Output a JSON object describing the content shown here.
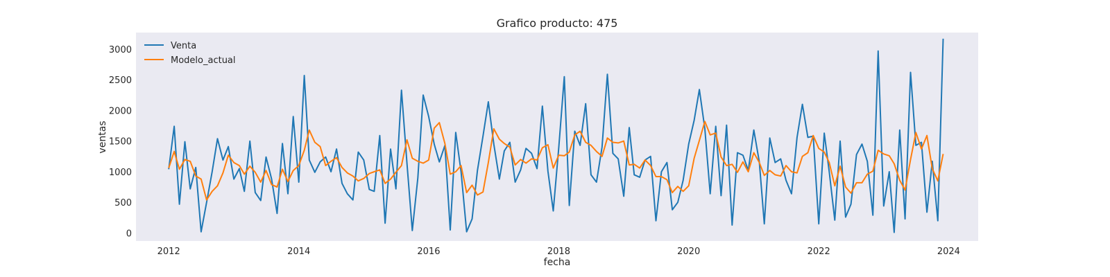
{
  "chart_data": {
    "type": "line",
    "title": "Grafico producto: 475",
    "xlabel": "fecha",
    "ylabel": "ventas",
    "x_range": [
      "2011-07-01",
      "2024-06-15"
    ],
    "ylim": [
      -130,
      3270
    ],
    "x_ticks": [
      "2012",
      "2014",
      "2016",
      "2018",
      "2020",
      "2022",
      "2024"
    ],
    "y_ticks": [
      0,
      500,
      1000,
      1500,
      2000,
      2500,
      3000
    ],
    "grid": false,
    "legend": "top-left",
    "start_date": "2012-01",
    "frequency": "monthly",
    "series": [
      {
        "name": "Venta",
        "color": "#1f77b4",
        "values": [
          1040,
          1740,
          470,
          1490,
          720,
          1070,
          20,
          500,
          1000,
          1540,
          1190,
          1410,
          880,
          1050,
          680,
          1500,
          660,
          530,
          1240,
          880,
          320,
          1460,
          640,
          1900,
          830,
          2570,
          1190,
          990,
          1160,
          1240,
          1000,
          1370,
          810,
          640,
          540,
          1320,
          1190,
          710,
          680,
          1590,
          160,
          1370,
          720,
          2330,
          1140,
          40,
          900,
          2250,
          1900,
          1450,
          1160,
          1430,
          50,
          1640,
          1000,
          20,
          230,
          1020,
          1580,
          2140,
          1450,
          880,
          1340,
          1480,
          830,
          1030,
          1380,
          1300,
          1050,
          2070,
          1010,
          360,
          1390,
          2550,
          450,
          1660,
          1430,
          2110,
          950,
          830,
          1400,
          2590,
          1300,
          1210,
          600,
          1720,
          950,
          910,
          1190,
          1250,
          200,
          1000,
          1150,
          380,
          500,
          860,
          1450,
          1840,
          2340,
          1700,
          640,
          1740,
          610,
          1760,
          130,
          1310,
          1270,
          1020,
          1680,
          1160,
          150,
          1550,
          1150,
          1210,
          860,
          640,
          1560,
          2100,
          1560,
          1580,
          150,
          1630,
          1000,
          210,
          1500,
          260,
          470,
          1280,
          1450,
          1170,
          290,
          2970,
          440,
          1000,
          10,
          1680,
          230,
          2620,
          1430,
          1480,
          340,
          1170,
          200,
          3170
        ]
      },
      {
        "name": "Modelo_actual",
        "color": "#ff7f0e",
        "values": [
          1060,
          1330,
          1040,
          1200,
          1170,
          930,
          880,
          540,
          680,
          770,
          980,
          1270,
          1150,
          1100,
          960,
          1090,
          990,
          830,
          1020,
          790,
          750,
          1040,
          840,
          1020,
          1100,
          1350,
          1680,
          1480,
          1410,
          1100,
          1170,
          1230,
          1070,
          980,
          930,
          850,
          890,
          970,
          1000,
          1030,
          810,
          880,
          990,
          1100,
          1520,
          1220,
          1170,
          1140,
          1190,
          1710,
          1800,
          1460,
          960,
          1000,
          1100,
          660,
          780,
          620,
          670,
          1150,
          1700,
          1530,
          1460,
          1400,
          1110,
          1200,
          1140,
          1210,
          1190,
          1390,
          1440,
          1060,
          1270,
          1260,
          1320,
          1600,
          1660,
          1480,
          1430,
          1330,
          1250,
          1550,
          1480,
          1470,
          1500,
          1110,
          1120,
          1060,
          1190,
          1100,
          920,
          920,
          870,
          660,
          760,
          680,
          770,
          1220,
          1510,
          1820,
          1600,
          1630,
          1240,
          1100,
          1120,
          990,
          1160,
          1000,
          1310,
          1150,
          940,
          1020,
          950,
          930,
          1100,
          1000,
          980,
          1250,
          1310,
          1590,
          1380,
          1320,
          1150,
          770,
          1090,
          750,
          650,
          820,
          820,
          960,
          1010,
          1350,
          1290,
          1260,
          1130,
          860,
          700,
          1200,
          1640,
          1370,
          1590,
          1050,
          850,
          1290
        ]
      }
    ]
  }
}
